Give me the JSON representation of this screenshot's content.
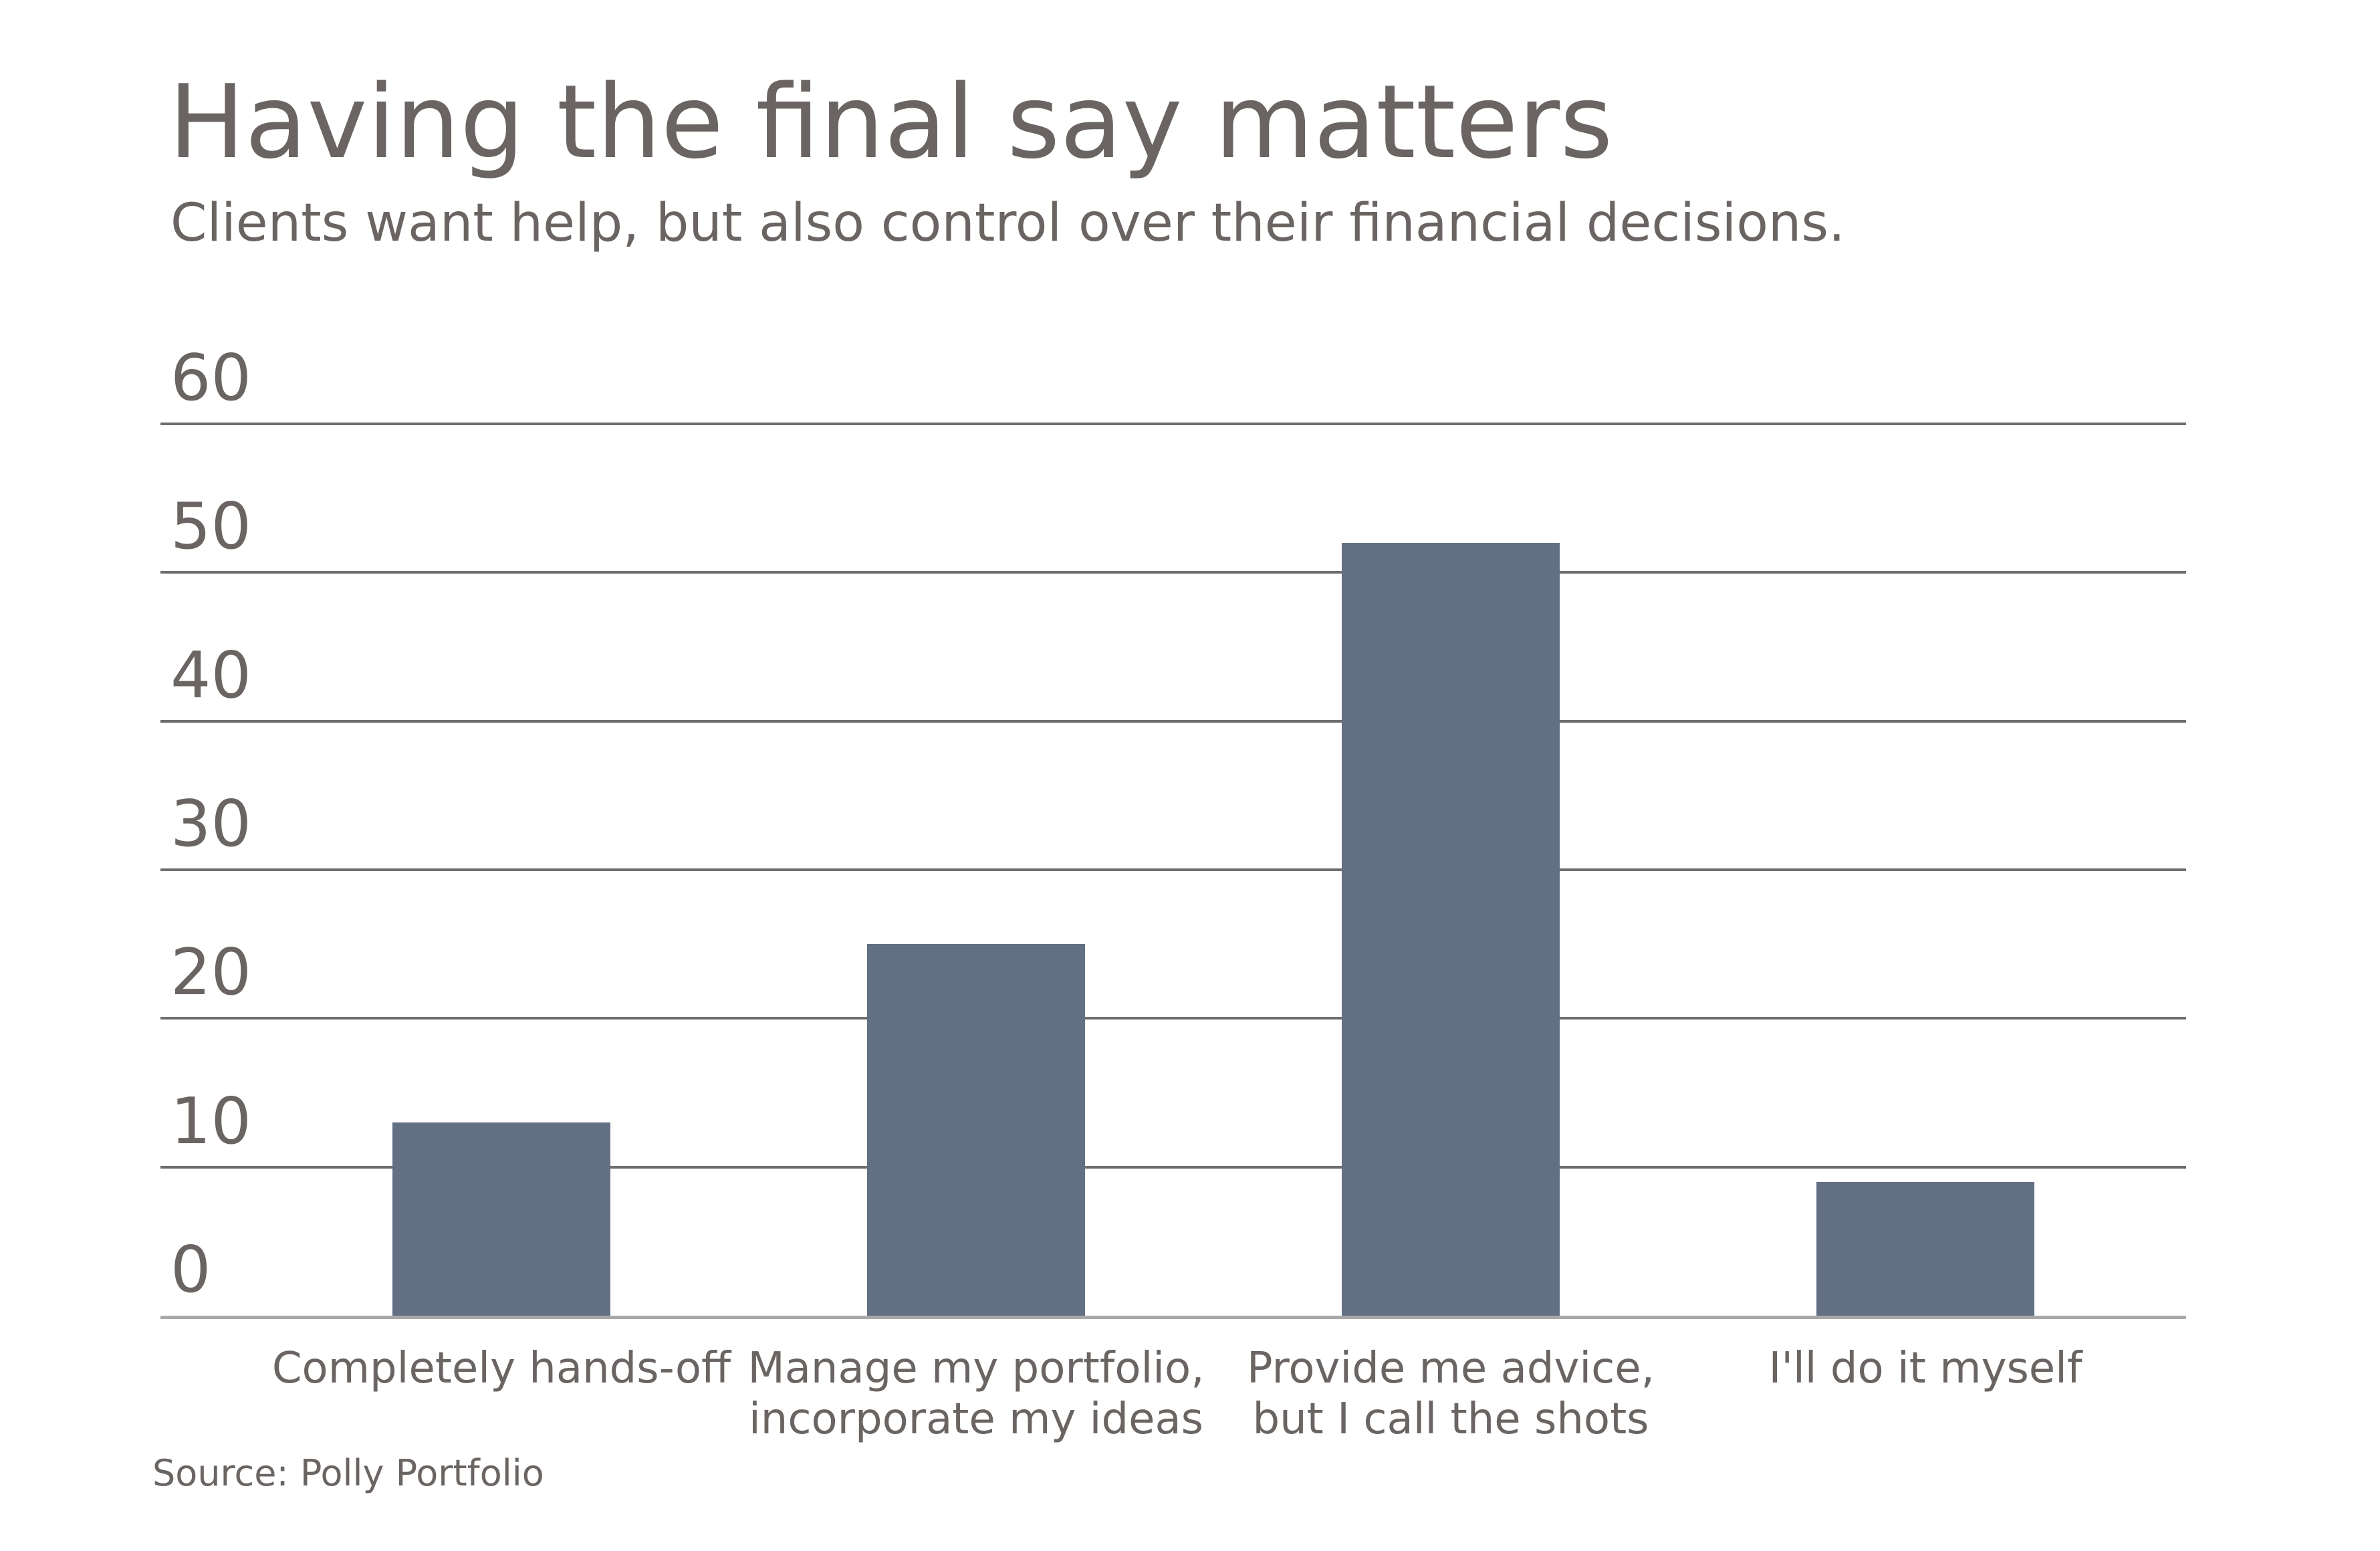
{
  "header": {
    "title": "Having the final say matters",
    "subtitle": "Clients want help, but also control over their financial decisions."
  },
  "source_note": "Source: Polly Portfolio",
  "colors": {
    "bar": "#637083",
    "gridline": "#6e6e6e",
    "axisline": "#a9a9a9",
    "text": "#6a6562",
    "background": "#ffffff"
  },
  "chart_data": {
    "type": "bar",
    "title": "Having the final say matters",
    "subtitle": "Clients want help, but also control over their financial decisions.",
    "categories": [
      "Completely hands-off",
      "Manage my portfolio,\nincorporate my ideas",
      "Provide me advice,\nbut I call the shots",
      "I'll do it myself"
    ],
    "values": [
      13,
      25,
      52,
      9
    ],
    "xlabel": "",
    "ylabel": "",
    "ylim": [
      0,
      60
    ],
    "yticks": [
      0,
      10,
      20,
      30,
      40,
      50,
      60
    ],
    "grid": true,
    "legend_position": "none",
    "source": "Source: Polly Portfolio"
  }
}
